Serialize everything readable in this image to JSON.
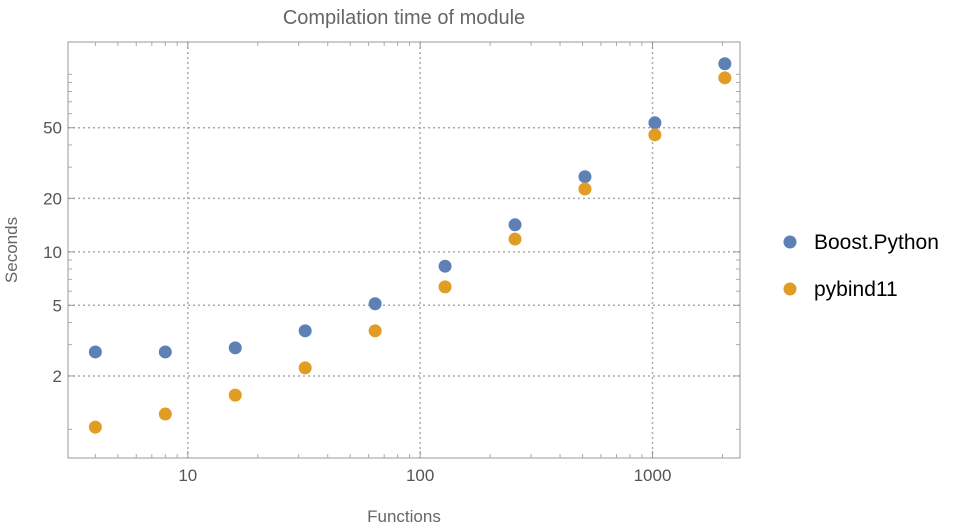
{
  "chart_data": {
    "type": "scatter",
    "title": "Compilation time of module",
    "xlabel": "Functions",
    "ylabel": "Seconds",
    "xscale": "log",
    "yscale": "log",
    "xlim": [
      3.05,
      2380
    ],
    "ylim": [
      0.69,
      152
    ],
    "grid": true,
    "legend_position": "right",
    "x_ticks": [
      10,
      100,
      1000
    ],
    "x_tick_labels": [
      "10",
      "100",
      "1000"
    ],
    "y_ticks": [
      2,
      5,
      10,
      20,
      50
    ],
    "y_tick_labels": [
      "2",
      "5",
      "10",
      "20",
      "50"
    ],
    "x": [
      4,
      8,
      16,
      32,
      64,
      128,
      256,
      512,
      1024,
      2048
    ],
    "series": [
      {
        "name": "Boost.Python",
        "color": "#5E81B5",
        "values": [
          2.73,
          2.73,
          2.88,
          3.59,
          5.1,
          8.3,
          14.2,
          26.5,
          53.3,
          114.6
        ]
      },
      {
        "name": "pybind11",
        "color": "#E19C24",
        "values": [
          1.03,
          1.22,
          1.56,
          2.22,
          3.59,
          6.35,
          11.8,
          22.6,
          45.6,
          95.5
        ]
      }
    ]
  }
}
